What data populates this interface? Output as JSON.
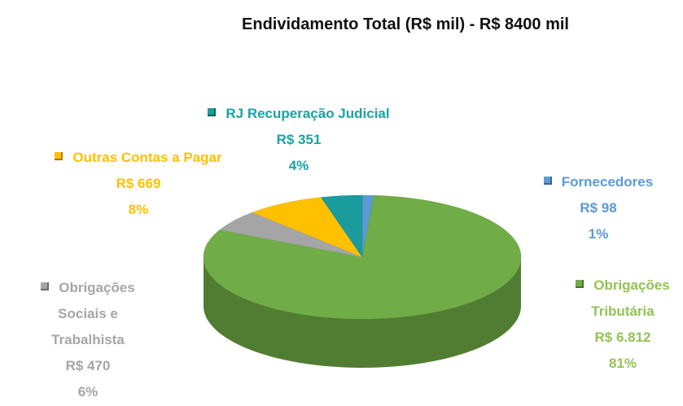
{
  "chart_data": {
    "type": "pie",
    "title": "Endividamento Total (R$ mil) -  R$ 8400 mil",
    "categories": [
      "Fornecedores",
      "Obrigações Tributária",
      "Obrigações Sociais e Trabalhista",
      "Outras Contas a Pagar",
      "RJ Recuperação Judicial"
    ],
    "values": [
      98,
      6812,
      470,
      669,
      351
    ],
    "value_labels": [
      "R$ 98",
      "R$ 6.812",
      "R$ 470",
      "R$ 669",
      "R$ 351"
    ],
    "percent_labels": [
      "1%",
      "81%",
      "6%",
      "8%",
      "4%"
    ],
    "colors": [
      "#5b9bd5",
      "#70ad47",
      "#a5a5a5",
      "#ffc000",
      "#1a9c9c"
    ],
    "label_colors": [
      "#5b9bd5",
      "#92c353",
      "#a6a6a6",
      "#ffc000",
      "#1aa3a3"
    ]
  }
}
